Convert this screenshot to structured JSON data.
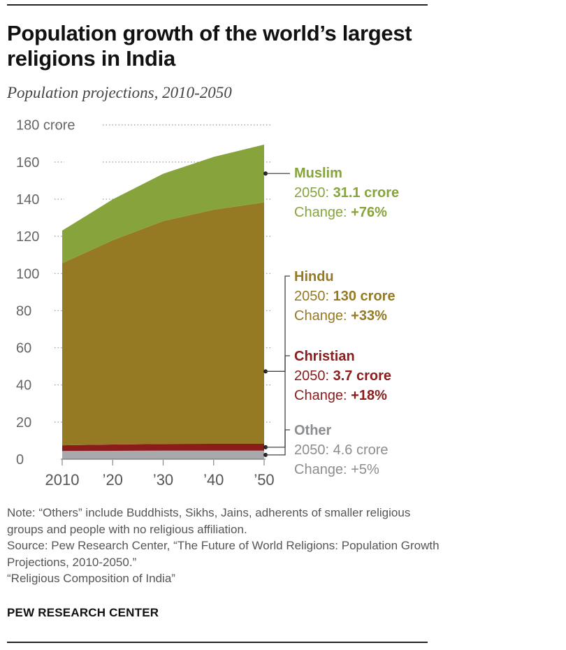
{
  "header": {
    "title": "Population growth of the world’s largest religions in India",
    "subtitle": "Population projections, 2010-2050"
  },
  "chart_data": {
    "type": "area",
    "stacked": true,
    "x": [
      2010,
      2020,
      2030,
      2040,
      2050
    ],
    "x_tick_labels": [
      "2010",
      "’20",
      "’30",
      "’40",
      "’50"
    ],
    "ylim": [
      0,
      180
    ],
    "y_ticks": [
      0,
      20,
      40,
      60,
      80,
      100,
      120,
      140,
      160,
      180
    ],
    "y_tick_labels": [
      "0",
      "20",
      "40",
      "60",
      "80",
      "100",
      "120",
      "140",
      "160",
      "180 crore"
    ],
    "grid": true,
    "series": [
      {
        "name": "Other",
        "color": "#a7a9ac",
        "values": [
          4.4,
          4.5,
          4.6,
          4.6,
          4.6
        ]
      },
      {
        "name": "Christian",
        "color": "#8a1c1c",
        "values": [
          3.1,
          3.4,
          3.6,
          3.7,
          3.7
        ]
      },
      {
        "name": "Hindu",
        "color": "#957a23",
        "values": [
          98,
          110,
          120,
          126,
          130
        ]
      },
      {
        "name": "Muslim",
        "color": "#87a43c",
        "values": [
          17.6,
          22,
          25.5,
          28.5,
          31.1
        ]
      }
    ],
    "labels": [
      {
        "series": "Muslim",
        "name": "Muslim",
        "line2_prefix": "2050: ",
        "line2_value": "31.1 crore",
        "line3_prefix": "Change: ",
        "line3_value": "+76%",
        "color": "#87a43c",
        "value_bold": true
      },
      {
        "series": "Hindu",
        "name": "Hindu",
        "line2_prefix": "2050: ",
        "line2_value": "130 crore",
        "line3_prefix": "Change: ",
        "line3_value": "+33%",
        "color": "#957a23",
        "value_bold": true
      },
      {
        "series": "Christian",
        "name": "Christian",
        "line2_prefix": "2050: ",
        "line2_value": "3.7 crore",
        "line3_prefix": "Change: ",
        "line3_value": "+18%",
        "color": "#8a1c1c",
        "value_bold": true
      },
      {
        "series": "Other",
        "name": "Other",
        "line2_prefix": "2050: ",
        "line2_value": "4.6 crore",
        "line3_prefix": "Change: ",
        "line3_value": "+5%",
        "color": "#8b8d90",
        "value_bold": false
      }
    ]
  },
  "notes": {
    "note": "Note: “Others” include Buddhists, Sikhs, Jains, adherents of smaller religious groups and people with no religious affiliation.",
    "source1": "Source: Pew Research Center, “The Future of World Religions: Population Growth Projections, 2010-2050.”",
    "source2": "“Religious Composition of India”"
  },
  "footer": {
    "brand": "PEW RESEARCH CENTER"
  }
}
